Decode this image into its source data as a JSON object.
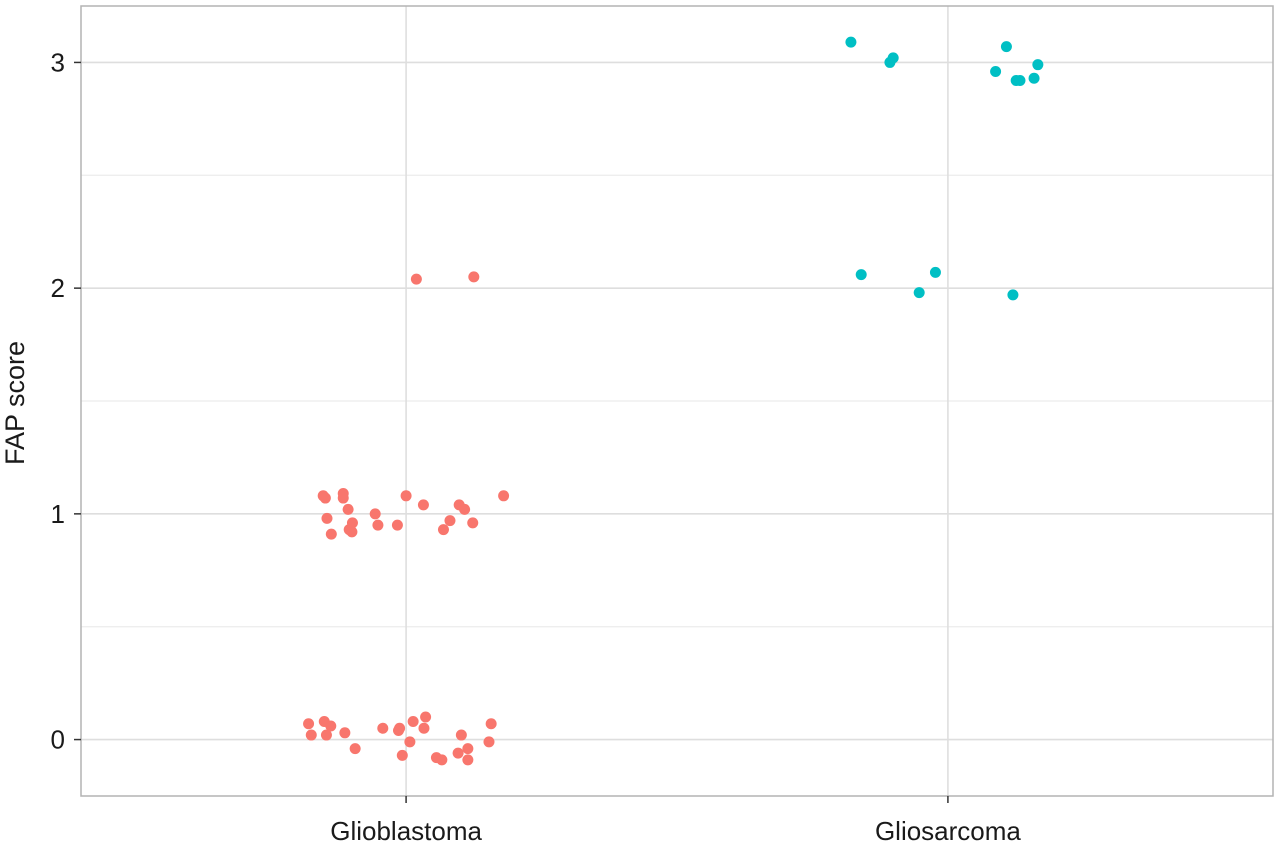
{
  "chart_data": {
    "type": "scatter",
    "title": "",
    "xlabel": "",
    "ylabel": "FAP score",
    "ylim": [
      -0.25,
      3.25
    ],
    "y_ticks": [
      "0",
      "1",
      "2",
      "3"
    ],
    "grid": true,
    "legend": "none",
    "categories": [
      "Glioblastoma",
      "Gliosarcoma"
    ],
    "series": [
      {
        "category": "Glioblastoma",
        "color": "#F8766D",
        "points": [
          {
            "x": -0.153,
            "y": 1.08
          },
          {
            "x": -0.149,
            "y": 1.07
          },
          {
            "x": -0.146,
            "y": 0.98
          },
          {
            "x": -0.138,
            "y": 0.91
          },
          {
            "x": -0.116,
            "y": 1.09
          },
          {
            "x": -0.116,
            "y": 1.07
          },
          {
            "x": -0.107,
            "y": 1.02
          },
          {
            "x": -0.105,
            "y": 0.93
          },
          {
            "x": -0.1,
            "y": 0.92
          },
          {
            "x": -0.099,
            "y": 0.96
          },
          {
            "x": -0.057,
            "y": 1.0
          },
          {
            "x": -0.052,
            "y": 0.95
          },
          {
            "x": -0.016,
            "y": 0.95
          },
          {
            "x": 0.0,
            "y": 1.08
          },
          {
            "x": 0.032,
            "y": 1.04
          },
          {
            "x": 0.069,
            "y": 0.93
          },
          {
            "x": 0.081,
            "y": 0.97
          },
          {
            "x": 0.098,
            "y": 1.04
          },
          {
            "x": 0.108,
            "y": 1.02
          },
          {
            "x": 0.123,
            "y": 0.96
          },
          {
            "x": 0.18,
            "y": 1.08
          },
          {
            "x": 0.019,
            "y": 2.04
          },
          {
            "x": 0.125,
            "y": 2.05
          },
          {
            "x": -0.18,
            "y": 0.07
          },
          {
            "x": -0.175,
            "y": 0.02
          },
          {
            "x": -0.151,
            "y": 0.08
          },
          {
            "x": -0.147,
            "y": 0.02
          },
          {
            "x": -0.139,
            "y": 0.06
          },
          {
            "x": -0.113,
            "y": 0.03
          },
          {
            "x": -0.094,
            "y": -0.04
          },
          {
            "x": -0.043,
            "y": 0.05
          },
          {
            "x": -0.014,
            "y": 0.04
          },
          {
            "x": -0.012,
            "y": 0.05
          },
          {
            "x": -0.007,
            "y": -0.07
          },
          {
            "x": 0.007,
            "y": -0.01
          },
          {
            "x": 0.013,
            "y": 0.08
          },
          {
            "x": 0.033,
            "y": 0.05
          },
          {
            "x": 0.036,
            "y": 0.1
          },
          {
            "x": 0.056,
            "y": -0.08
          },
          {
            "x": 0.066,
            "y": -0.09
          },
          {
            "x": 0.096,
            "y": -0.06
          },
          {
            "x": 0.102,
            "y": 0.02
          },
          {
            "x": 0.114,
            "y": -0.04
          },
          {
            "x": 0.114,
            "y": -0.09
          },
          {
            "x": 0.153,
            "y": -0.01
          },
          {
            "x": 0.157,
            "y": 0.07
          }
        ]
      },
      {
        "category": "Gliosarcoma",
        "color": "#00BFC4",
        "points": [
          {
            "x": -0.179,
            "y": 3.09
          },
          {
            "x": -0.107,
            "y": 3.0
          },
          {
            "x": -0.101,
            "y": 3.02
          },
          {
            "x": -0.16,
            "y": 2.06
          },
          {
            "x": -0.053,
            "y": 1.98
          },
          {
            "x": -0.023,
            "y": 2.07
          },
          {
            "x": 0.088,
            "y": 2.96
          },
          {
            "x": 0.108,
            "y": 3.07
          },
          {
            "x": 0.126,
            "y": 2.92
          },
          {
            "x": 0.133,
            "y": 2.92
          },
          {
            "x": 0.159,
            "y": 2.93
          },
          {
            "x": 0.166,
            "y": 2.99
          },
          {
            "x": 0.12,
            "y": 1.97
          }
        ]
      }
    ]
  }
}
